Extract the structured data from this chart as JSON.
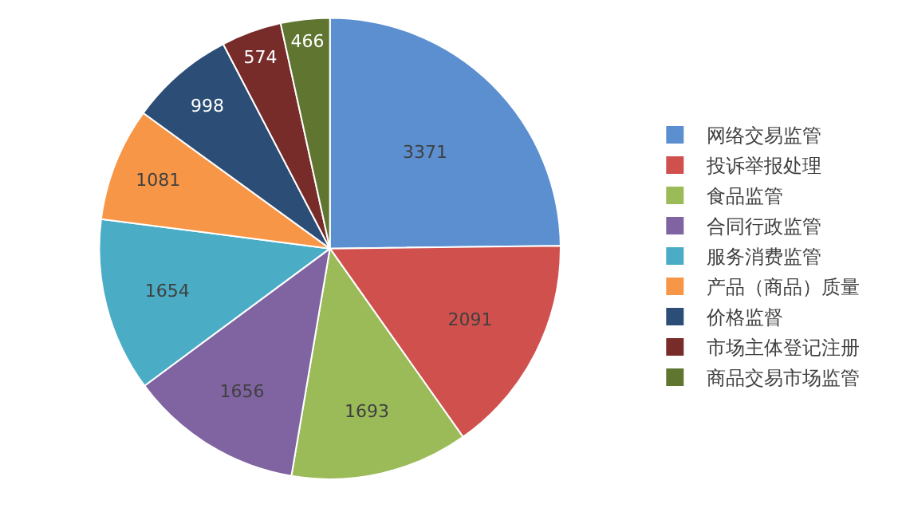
{
  "chart_data": {
    "type": "pie",
    "categories": [
      "网络交易监管",
      "投诉举报处理",
      "食品监管",
      "合同行政监管",
      "服务消费监管",
      "产品（商品）质量",
      "价格监督",
      "市场主体登记注册",
      "商品交易市场监管"
    ],
    "values": [
      3371,
      2091,
      1693,
      1656,
      1654,
      1081,
      998,
      574,
      466
    ],
    "colors": [
      "#5b8fd0",
      "#d0504e",
      "#9bbb59",
      "#8064a2",
      "#4bacc6",
      "#f79646",
      "#2c4d75",
      "#772c2a",
      "#5f7530"
    ],
    "data_labels": true,
    "legend": "right"
  }
}
